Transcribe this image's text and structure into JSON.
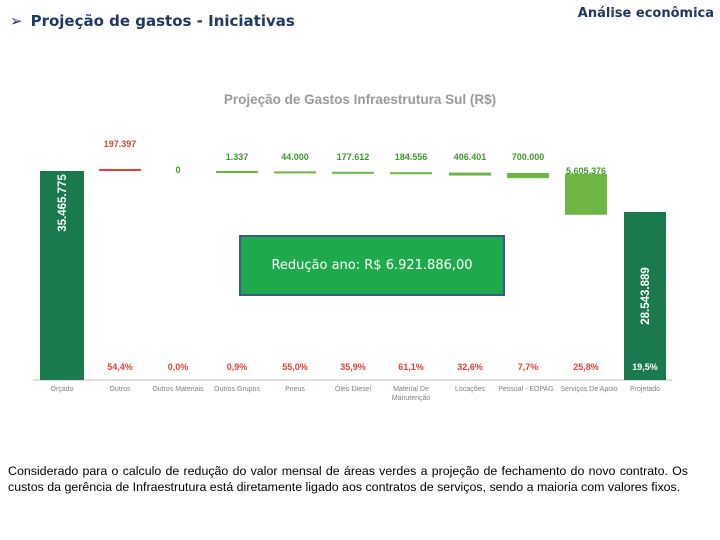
{
  "header": {
    "title": "Projeção de gastos - Iniciativas",
    "subtitle": "Análise econômica",
    "bullet_icon": "arrow-right-bullet-icon"
  },
  "chart_data": {
    "type": "waterfall",
    "title": "Projeção de Gastos Infraestrutura Sul (R$)",
    "unit": "R$",
    "start": {
      "category": "Orçado",
      "value": 35465775,
      "label": "35.465.775",
      "percent": ""
    },
    "end": {
      "category": "Projetado",
      "value": 28543889,
      "label": "28.543.889",
      "percent": "19,5%"
    },
    "categories": [
      "Orçado",
      "Outros",
      "Outros Materiais",
      "Outros Grupos",
      "Pneus",
      "Óleo Diesel",
      "Material De Manutenção",
      "Locações",
      "Pessoal - EOPAG",
      "Serviços De Apoio",
      "Projetado"
    ],
    "steps": [
      {
        "category": "Outros",
        "value": 197397,
        "label": "197.397",
        "percent": "54,4%",
        "direction": "up",
        "color": "#e0403a"
      },
      {
        "category": "Outros Materiais",
        "value": 0,
        "label": "0",
        "percent": "0,0%",
        "direction": "down",
        "color": "#5fad2f"
      },
      {
        "category": "Outros Grupos",
        "value": 1337,
        "label": "1.337",
        "percent": "0,9%",
        "direction": "down",
        "color": "#5fad2f"
      },
      {
        "category": "Pneus",
        "value": 44000,
        "label": "44.000",
        "percent": "55,0%",
        "direction": "down",
        "color": "#5fad2f"
      },
      {
        "category": "Óleo Diesel",
        "value": 177612,
        "label": "177.612",
        "percent": "35,9%",
        "direction": "down",
        "color": "#5fad2f"
      },
      {
        "category": "Material De Manutenção",
        "value": 184556,
        "label": "184.556",
        "percent": "61,1%",
        "direction": "down",
        "color": "#5fad2f"
      },
      {
        "category": "Locações",
        "value": 406401,
        "label": "406.401",
        "percent": "32,6%",
        "direction": "down",
        "color": "#5fad2f"
      },
      {
        "category": "Pessoal - EOPAG",
        "value": 700000,
        "label": "700.000",
        "percent": "7,7%",
        "direction": "down",
        "color": "#5fad2f"
      },
      {
        "category": "Serviços De Apoio",
        "value": 5605376,
        "label": "5.605.376",
        "percent": "25,8%",
        "direction": "down",
        "color": "#5fad2f"
      }
    ],
    "total_bar_color": "#1a7a4e",
    "increase_color": "#e0403a",
    "decrease_color": "#5fad2f",
    "label_color": "#3d9a2d",
    "percent_color": "#e0403a",
    "gridlines": false,
    "legend": "none"
  },
  "reduction": {
    "text": "Redução ano: R$ 6.921.886,00"
  },
  "footnote": {
    "text": "Considerado para o calculo de redução do valor mensal de áreas verdes a projeção de fechamento do novo contrato. Os custos da gerência de Infraestrutura está diretamente ligado aos contratos de serviços, sendo a maioria com valores fixos."
  }
}
